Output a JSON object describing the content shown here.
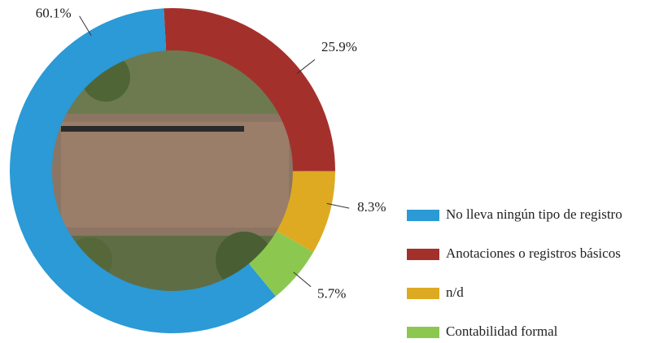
{
  "chart_data": {
    "type": "donut",
    "categories": [
      "No lleva ningún tipo de registro",
      "Anotaciones o registros básicos",
      "n/d",
      "Contabilidad formal"
    ],
    "values": [
      60.1,
      25.9,
      8.3,
      5.7
    ],
    "value_labels": [
      "60.1%",
      "25.9%",
      "8.3%",
      "5.7%"
    ],
    "colors": [
      "#2b9ad6",
      "#a4302c",
      "#ddaa22",
      "#8cc850"
    ],
    "legend": "right"
  }
}
